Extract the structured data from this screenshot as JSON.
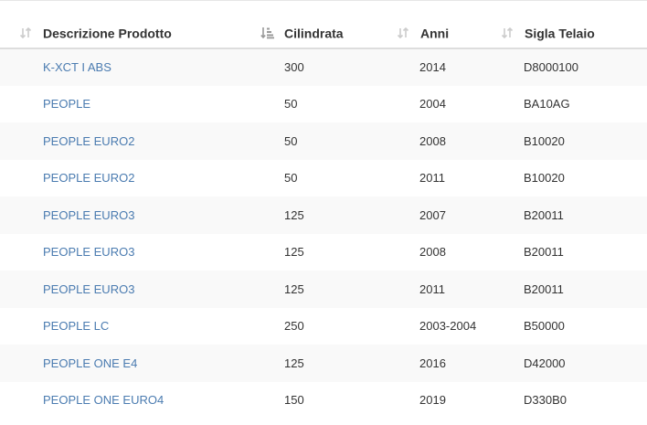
{
  "table": {
    "columns": [
      {
        "label": "Descrizione Prodotto",
        "sort_icon": "sort-icon",
        "sorted": false
      },
      {
        "label": "Cilindrata",
        "sort_icon": "sort-amount-down-icon",
        "sorted": true
      },
      {
        "label": "Anni",
        "sort_icon": "sort-icon",
        "sorted": false
      },
      {
        "label": "Sigla Telaio",
        "sort_icon": "sort-icon",
        "sorted": false
      }
    ],
    "rows": [
      {
        "product": "K-XCT I ABS",
        "cc": "300",
        "years": "2014",
        "frame": "D8000100"
      },
      {
        "product": "PEOPLE",
        "cc": "50",
        "years": "2004",
        "frame": "BA10AG"
      },
      {
        "product": "PEOPLE EURO2",
        "cc": "50",
        "years": "2008",
        "frame": "B10020"
      },
      {
        "product": "PEOPLE EURO2",
        "cc": "50",
        "years": "2011",
        "frame": "B10020"
      },
      {
        "product": "PEOPLE EURO3",
        "cc": "125",
        "years": "2007",
        "frame": "B20011"
      },
      {
        "product": "PEOPLE EURO3",
        "cc": "125",
        "years": "2008",
        "frame": "B20011"
      },
      {
        "product": "PEOPLE EURO3",
        "cc": "125",
        "years": "2011",
        "frame": "B20011"
      },
      {
        "product": "PEOPLE LC",
        "cc": "250",
        "years": "2003-2004",
        "frame": "B50000"
      },
      {
        "product": "PEOPLE ONE E4",
        "cc": "125",
        "years": "2016",
        "frame": "D42000"
      },
      {
        "product": "PEOPLE ONE EURO4",
        "cc": "150",
        "years": "2019",
        "frame": "D330B0"
      }
    ]
  },
  "colors": {
    "link": "#4a7bb0",
    "stripe": "#f9f9f9",
    "header_border": "#dddddd"
  }
}
